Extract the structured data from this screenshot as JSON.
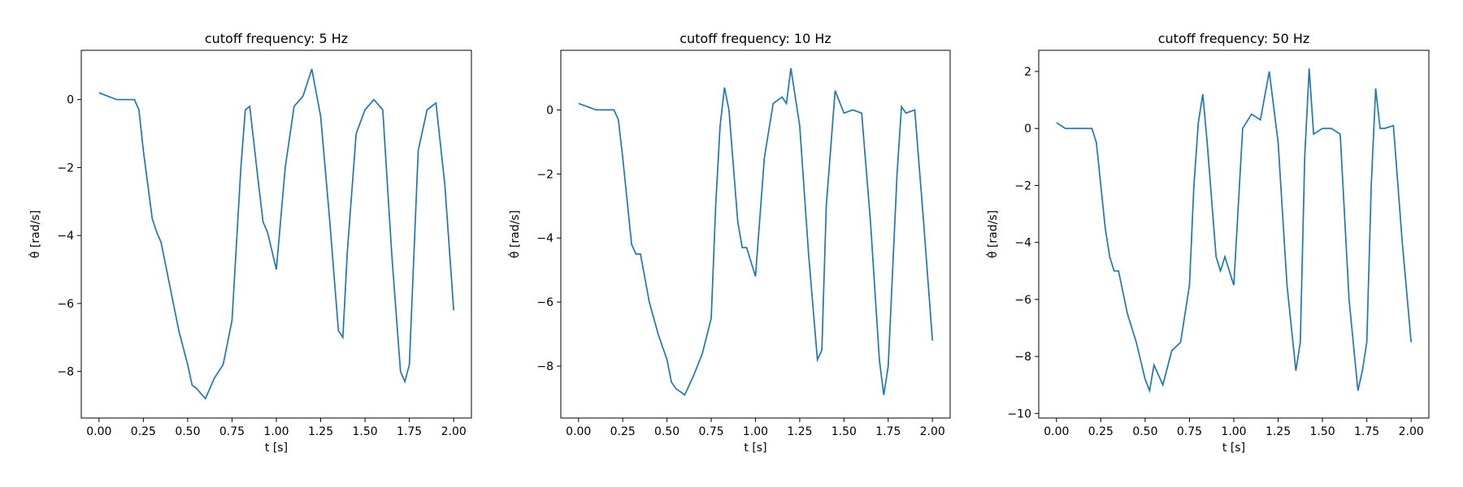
{
  "chart_data": [
    {
      "type": "line",
      "title": "cutoff frequency: 5 Hz",
      "xlabel": "t [s]",
      "ylabel": "θ̇ [rad/s]",
      "color": "#1f77b4",
      "x": [
        0,
        0.05,
        0.1,
        0.15,
        0.2,
        0.225,
        0.25,
        0.3,
        0.325,
        0.35,
        0.4,
        0.45,
        0.5,
        0.525,
        0.55,
        0.6,
        0.65,
        0.7,
        0.75,
        0.8,
        0.825,
        0.85,
        0.9,
        0.925,
        0.95,
        1.0,
        1.05,
        1.1,
        1.15,
        1.2,
        1.25,
        1.3,
        1.35,
        1.375,
        1.4,
        1.45,
        1.5,
        1.55,
        1.6,
        1.65,
        1.7,
        1.725,
        1.75,
        1.8,
        1.85,
        1.9,
        1.95,
        2.0
      ],
      "values": [
        0.2,
        0.1,
        0.0,
        0.0,
        0.0,
        -0.3,
        -1.5,
        -3.5,
        -3.9,
        -4.2,
        -5.5,
        -6.8,
        -7.8,
        -8.4,
        -8.5,
        -8.8,
        -8.2,
        -7.8,
        -6.5,
        -2.0,
        -0.3,
        -0.2,
        -2.5,
        -3.6,
        -3.9,
        -5.0,
        -2.0,
        -0.2,
        0.1,
        0.9,
        -0.5,
        -3.5,
        -6.8,
        -7.0,
        -4.5,
        -1.0,
        -0.3,
        0.0,
        -0.3,
        -4.5,
        -8.0,
        -8.3,
        -7.8,
        -1.5,
        -0.3,
        -0.1,
        -2.5,
        -6.2
      ],
      "xlim": [
        -0.1,
        2.1
      ],
      "ylim": [
        -9.37,
        1.45
      ],
      "xticks": [
        {
          "value": 0,
          "label": "0.00"
        },
        {
          "value": 0.25,
          "label": "0.25"
        },
        {
          "value": 0.5,
          "label": "0.50"
        },
        {
          "value": 0.75,
          "label": "0.75"
        },
        {
          "value": 1,
          "label": "1.00"
        },
        {
          "value": 1.25,
          "label": "1.25"
        },
        {
          "value": 1.5,
          "label": "1.50"
        },
        {
          "value": 1.75,
          "label": "1.75"
        },
        {
          "value": 2,
          "label": "2.00"
        }
      ],
      "yticks": [
        {
          "value": 0,
          "label": "0"
        },
        {
          "value": -2,
          "label": "−2"
        },
        {
          "value": -4,
          "label": "−4"
        },
        {
          "value": -6,
          "label": "−6"
        },
        {
          "value": -8,
          "label": "−8"
        }
      ]
    },
    {
      "type": "line",
      "title": "cutoff frequency: 10 Hz",
      "xlabel": "t [s]",
      "ylabel": "θ̇ [rad/s]",
      "color": "#1f77b4",
      "x": [
        0,
        0.05,
        0.1,
        0.15,
        0.2,
        0.225,
        0.25,
        0.3,
        0.325,
        0.35,
        0.4,
        0.45,
        0.5,
        0.525,
        0.55,
        0.6,
        0.65,
        0.7,
        0.75,
        0.775,
        0.8,
        0.825,
        0.85,
        0.9,
        0.925,
        0.95,
        1.0,
        1.05,
        1.1,
        1.15,
        1.175,
        1.2,
        1.25,
        1.3,
        1.35,
        1.375,
        1.4,
        1.45,
        1.5,
        1.55,
        1.6,
        1.65,
        1.7,
        1.725,
        1.75,
        1.8,
        1.825,
        1.85,
        1.9,
        1.95,
        2.0
      ],
      "values": [
        0.2,
        0.1,
        0.0,
        0.0,
        0.0,
        -0.3,
        -1.5,
        -4.2,
        -4.5,
        -4.5,
        -6.0,
        -7.0,
        -7.8,
        -8.5,
        -8.7,
        -8.9,
        -8.3,
        -7.6,
        -6.5,
        -3.0,
        -0.5,
        0.7,
        0.0,
        -3.5,
        -4.3,
        -4.3,
        -5.2,
        -1.5,
        0.2,
        0.4,
        0.2,
        1.3,
        -0.5,
        -4.5,
        -7.8,
        -7.5,
        -3.0,
        0.6,
        -0.1,
        0.0,
        -0.1,
        -3.5,
        -7.8,
        -8.9,
        -8.0,
        -2.0,
        0.1,
        -0.1,
        0.0,
        -3.5,
        -7.2
      ],
      "xlim": [
        -0.1,
        2.1
      ],
      "ylim": [
        -9.62,
        1.86
      ],
      "xticks": [
        {
          "value": 0,
          "label": "0.00"
        },
        {
          "value": 0.25,
          "label": "0.25"
        },
        {
          "value": 0.5,
          "label": "0.50"
        },
        {
          "value": 0.75,
          "label": "0.75"
        },
        {
          "value": 1,
          "label": "1.00"
        },
        {
          "value": 1.25,
          "label": "1.25"
        },
        {
          "value": 1.5,
          "label": "1.50"
        },
        {
          "value": 1.75,
          "label": "1.75"
        },
        {
          "value": 2,
          "label": "2.00"
        }
      ],
      "yticks": [
        {
          "value": 0,
          "label": "0"
        },
        {
          "value": -2,
          "label": "−2"
        },
        {
          "value": -4,
          "label": "−4"
        },
        {
          "value": -6,
          "label": "−6"
        },
        {
          "value": -8,
          "label": "−8"
        }
      ]
    },
    {
      "type": "line",
      "title": "cutoff frequency: 50 Hz",
      "xlabel": "t [s]",
      "ylabel": "θ̇ [rad/s]",
      "color": "#1f77b4",
      "x": [
        0,
        0.05,
        0.1,
        0.15,
        0.2,
        0.225,
        0.25,
        0.275,
        0.3,
        0.325,
        0.35,
        0.4,
        0.45,
        0.5,
        0.525,
        0.55,
        0.6,
        0.65,
        0.7,
        0.75,
        0.775,
        0.8,
        0.825,
        0.85,
        0.9,
        0.925,
        0.95,
        1.0,
        1.05,
        1.1,
        1.15,
        1.2,
        1.25,
        1.3,
        1.35,
        1.375,
        1.4,
        1.425,
        1.45,
        1.5,
        1.55,
        1.6,
        1.65,
        1.7,
        1.725,
        1.75,
        1.775,
        1.8,
        1.825,
        1.85,
        1.9,
        1.95,
        2.0
      ],
      "values": [
        0.2,
        0.0,
        0.0,
        0.0,
        0.0,
        -0.5,
        -2.0,
        -3.5,
        -4.5,
        -5.0,
        -5.0,
        -6.5,
        -7.5,
        -8.8,
        -9.2,
        -8.3,
        -9.0,
        -7.8,
        -7.5,
        -5.5,
        -2.0,
        0.2,
        1.2,
        -0.5,
        -4.5,
        -5.0,
        -4.5,
        -5.5,
        0.0,
        0.5,
        0.3,
        2.0,
        -0.5,
        -5.5,
        -8.5,
        -7.5,
        -1.0,
        2.1,
        -0.2,
        0.0,
        0.0,
        -0.2,
        -6.0,
        -9.2,
        -8.5,
        -7.5,
        -2.0,
        1.4,
        0.0,
        0.0,
        0.1,
        -4.0,
        -7.5
      ],
      "xlim": [
        -0.1,
        2.1
      ],
      "ylim": [
        -10.16,
        2.74
      ],
      "xticks": [
        {
          "value": 0,
          "label": "0.00"
        },
        {
          "value": 0.25,
          "label": "0.25"
        },
        {
          "value": 0.5,
          "label": "0.50"
        },
        {
          "value": 0.75,
          "label": "0.75"
        },
        {
          "value": 1,
          "label": "1.00"
        },
        {
          "value": 1.25,
          "label": "1.25"
        },
        {
          "value": 1.5,
          "label": "1.50"
        },
        {
          "value": 1.75,
          "label": "1.75"
        },
        {
          "value": 2,
          "label": "2.00"
        }
      ],
      "yticks": [
        {
          "value": 2,
          "label": "2"
        },
        {
          "value": 0,
          "label": "0"
        },
        {
          "value": -2,
          "label": "−2"
        },
        {
          "value": -4,
          "label": "−4"
        },
        {
          "value": -6,
          "label": "−6"
        },
        {
          "value": -8,
          "label": "−8"
        },
        {
          "value": -10,
          "label": "−10"
        }
      ]
    }
  ]
}
